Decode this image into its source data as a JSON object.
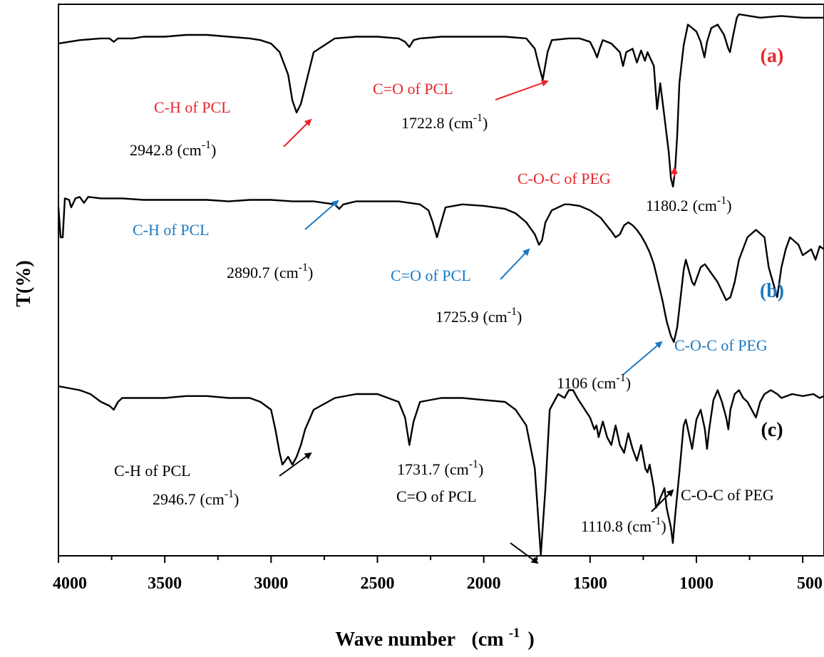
{
  "chart_data": {
    "type": "line",
    "xlabel": "Wave number",
    "xlabel_unit": "(cm",
    "xlabel_unit_sup": "-1",
    "xlabel_unit_close": ")",
    "ylabel": "T(%)",
    "xlim": [
      4000,
      400
    ],
    "x_reversed": true,
    "grid": false,
    "legend": "none",
    "xticks": [
      4000,
      3500,
      3000,
      2500,
      2000,
      1500,
      1000,
      500
    ],
    "xtick_labels": [
      "4000",
      "3500",
      "3000",
      "2500",
      "2000",
      "1500",
      "1000",
      "500"
    ],
    "line_color": "#000000",
    "colors": {
      "red": "#e8262b",
      "blue": "#1b7ac2",
      "black": "#000000"
    },
    "series": [
      {
        "name": "(a)",
        "label_color": "#e8262b",
        "x": [
          4000,
          3900,
          3800,
          3760,
          3740,
          3720,
          3650,
          3600,
          3500,
          3400,
          3300,
          3200,
          3100,
          3050,
          3000,
          2960,
          2920,
          2900,
          2880,
          2860,
          2840,
          2800,
          2700,
          2600,
          2500,
          2400,
          2370,
          2350,
          2330,
          2300,
          2200,
          2100,
          2000,
          1900,
          1800,
          1760,
          1740,
          1722.8,
          1700,
          1680,
          1600,
          1550,
          1500,
          1480,
          1467,
          1455,
          1440,
          1400,
          1360,
          1345,
          1330,
          1300,
          1280,
          1260,
          1242,
          1230,
          1200,
          1185,
          1170,
          1150,
          1130,
          1120,
          1110,
          1100,
          1090,
          1080,
          1060,
          1040,
          1000,
          980,
          962,
          950,
          930,
          900,
          870,
          850,
          842,
          830,
          810,
          800,
          750,
          700,
          600,
          500,
          400
        ],
        "y": [
          83,
          85,
          86,
          86,
          84,
          86,
          86,
          87,
          87,
          88,
          88,
          87,
          86,
          85,
          83,
          78,
          65,
          50,
          43,
          48,
          58,
          78,
          86,
          87,
          87,
          86,
          84,
          81,
          85,
          86,
          87,
          87,
          87,
          87,
          86,
          80,
          70,
          62,
          78,
          85,
          86,
          86,
          84,
          79,
          75,
          80,
          85,
          83,
          78,
          70,
          78,
          80,
          72,
          79,
          73,
          78,
          70,
          45,
          60,
          40,
          20,
          5,
          0,
          10,
          30,
          60,
          82,
          94,
          90,
          84,
          75,
          84,
          92,
          94,
          88,
          80,
          78,
          86,
          98,
          100,
          99,
          98,
          99,
          98,
          98
        ]
      },
      {
        "name": "(b)",
        "label_color": "#1b7ac2",
        "x": [
          4000,
          3990,
          3980,
          3970,
          3950,
          3940,
          3920,
          3900,
          3880,
          3860,
          3800,
          3700,
          3600,
          3500,
          3400,
          3300,
          3200,
          3100,
          3000,
          2900,
          2800,
          2700,
          2680,
          2660,
          2600,
          2500,
          2400,
          2300,
          2260,
          2240,
          2220,
          2200,
          2180,
          2100,
          2000,
          1900,
          1850,
          1800,
          1760,
          1740,
          1725.9,
          1710,
          1680,
          1620,
          1600,
          1550,
          1500,
          1450,
          1400,
          1380,
          1360,
          1340,
          1320,
          1300,
          1280,
          1260,
          1240,
          1220,
          1200,
          1180,
          1160,
          1140,
          1120,
          1106,
          1090,
          1060,
          1050,
          1040,
          1020,
          1010,
          1000,
          980,
          960,
          940,
          900,
          860,
          840,
          820,
          800,
          760,
          720,
          680,
          660,
          640,
          620,
          600,
          580,
          560,
          520,
          500,
          480,
          460,
          440,
          420,
          400
        ],
        "y": [
          90,
          70,
          70,
          96,
          95,
          90,
          96,
          97,
          93,
          97,
          96,
          96,
          95,
          95,
          95,
          95,
          94,
          95,
          95,
          94,
          94,
          92,
          89,
          92,
          94,
          94,
          94,
          92,
          88,
          80,
          70,
          80,
          90,
          92,
          91,
          89,
          86,
          80,
          72,
          65,
          68,
          80,
          88,
          92,
          92,
          91,
          88,
          83,
          74,
          70,
          72,
          78,
          80,
          78,
          75,
          71,
          66,
          60,
          52,
          40,
          28,
          14,
          4,
          0,
          10,
          48,
          55,
          50,
          40,
          38,
          42,
          50,
          52,
          48,
          40,
          28,
          30,
          40,
          55,
          70,
          75,
          70,
          50,
          40,
          30,
          50,
          62,
          70,
          65,
          58,
          60,
          62,
          55,
          64,
          62
        ]
      },
      {
        "name": "(c)",
        "label_color": "#000000",
        "x": [
          4000,
          3900,
          3850,
          3800,
          3760,
          3740,
          3720,
          3700,
          3650,
          3600,
          3500,
          3400,
          3300,
          3200,
          3100,
          3050,
          3000,
          2980,
          2960,
          2946.7,
          2920,
          2900,
          2880,
          2860,
          2840,
          2800,
          2700,
          2600,
          2500,
          2450,
          2400,
          2370,
          2350,
          2330,
          2300,
          2200,
          2100,
          2000,
          1900,
          1850,
          1800,
          1760,
          1731.7,
          1710,
          1690,
          1670,
          1650,
          1620,
          1600,
          1580,
          1560,
          1500,
          1480,
          1470,
          1460,
          1440,
          1420,
          1400,
          1380,
          1360,
          1340,
          1320,
          1300,
          1280,
          1260,
          1240,
          1230,
          1220,
          1200,
          1190,
          1180,
          1170,
          1150,
          1140,
          1130,
          1120,
          1110.8,
          1100,
          1080,
          1060,
          1050,
          1040,
          1020,
          1000,
          980,
          960,
          950,
          940,
          920,
          900,
          880,
          860,
          850,
          840,
          820,
          800,
          780,
          760,
          740,
          720,
          700,
          680,
          650,
          620,
          600,
          550,
          500,
          450,
          420,
          400
        ],
        "y": [
          92,
          90,
          88,
          84,
          82,
          80,
          84,
          86,
          86,
          86,
          86,
          87,
          87,
          86,
          86,
          84,
          80,
          70,
          58,
          52,
          56,
          52,
          56,
          62,
          70,
          80,
          86,
          88,
          88,
          86,
          84,
          76,
          62,
          74,
          84,
          86,
          86,
          85,
          84,
          80,
          72,
          50,
          2,
          40,
          80,
          84,
          88,
          86,
          90,
          90,
          86,
          76,
          70,
          72,
          66,
          74,
          66,
          62,
          72,
          62,
          58,
          68,
          60,
          54,
          62,
          50,
          48,
          52,
          40,
          30,
          32,
          35,
          40,
          30,
          25,
          20,
          12,
          26,
          48,
          72,
          75,
          70,
          60,
          75,
          80,
          70,
          60,
          70,
          85,
          90,
          84,
          76,
          70,
          80,
          88,
          90,
          86,
          84,
          80,
          76,
          84,
          88,
          90,
          88,
          86,
          88,
          87,
          88,
          86,
          87
        ]
      }
    ],
    "annotations": [
      {
        "text": "C-H of PCL",
        "color": "#e8262b"
      },
      {
        "text": "2942.8",
        "unit": "(cm",
        "sup": "-1",
        "close": ")",
        "color": "#000000",
        "unit_color": "#000000"
      },
      {
        "text": "C=O of PCL",
        "color": "#e8262b"
      },
      {
        "text": "1722.8",
        "unit": "(cm",
        "sup": "-1",
        "close": ")",
        "color": "#000000",
        "unit_color": "#000000"
      },
      {
        "text": "C-O-C of PEG",
        "color": "#e8262b"
      },
      {
        "text": "1180.2",
        "unit": "(cm",
        "sup": "-1",
        "close": ")",
        "color": "#000000",
        "unit_color": "#000000"
      },
      {
        "text": "C-H of PCL",
        "color": "#1b7ac2"
      },
      {
        "text": "2890.7",
        "unit": "(cm",
        "sup": "-1",
        "close": ")",
        "color": "#000000",
        "unit_color": "#000000"
      },
      {
        "text": "C=O of PCL",
        "color": "#1b7ac2"
      },
      {
        "text": "1725.9",
        "unit": "(cm",
        "sup": "-1",
        "close": ")",
        "color": "#000000",
        "unit_color": "#000000"
      },
      {
        "text": "C-O-C of PEG",
        "color": "#1b7ac2"
      },
      {
        "text": "1106",
        "unit": "(cm",
        "sup": "-1",
        "close": ")",
        "color": "#000000",
        "unit_color": "#000000"
      },
      {
        "text": "C-H of PCL",
        "color": "#000000"
      },
      {
        "text": "2946.7",
        "unit": "(cm",
        "sup": "-1",
        "close": ")",
        "color": "#000000",
        "unit_color": "#000000"
      },
      {
        "text": "1731.7",
        "unit": "(cm",
        "sup": "-1",
        "close": ")",
        "color": "#000000",
        "unit_color": "#000000"
      },
      {
        "text": "C=O of PCL",
        "color": "#000000"
      },
      {
        "text": "C-O-C of PEG",
        "color": "#000000"
      },
      {
        "text": "1110.8",
        "unit": "(cm",
        "sup": "-1",
        "close": ")",
        "color": "#000000",
        "unit_color": "#000000"
      }
    ]
  }
}
